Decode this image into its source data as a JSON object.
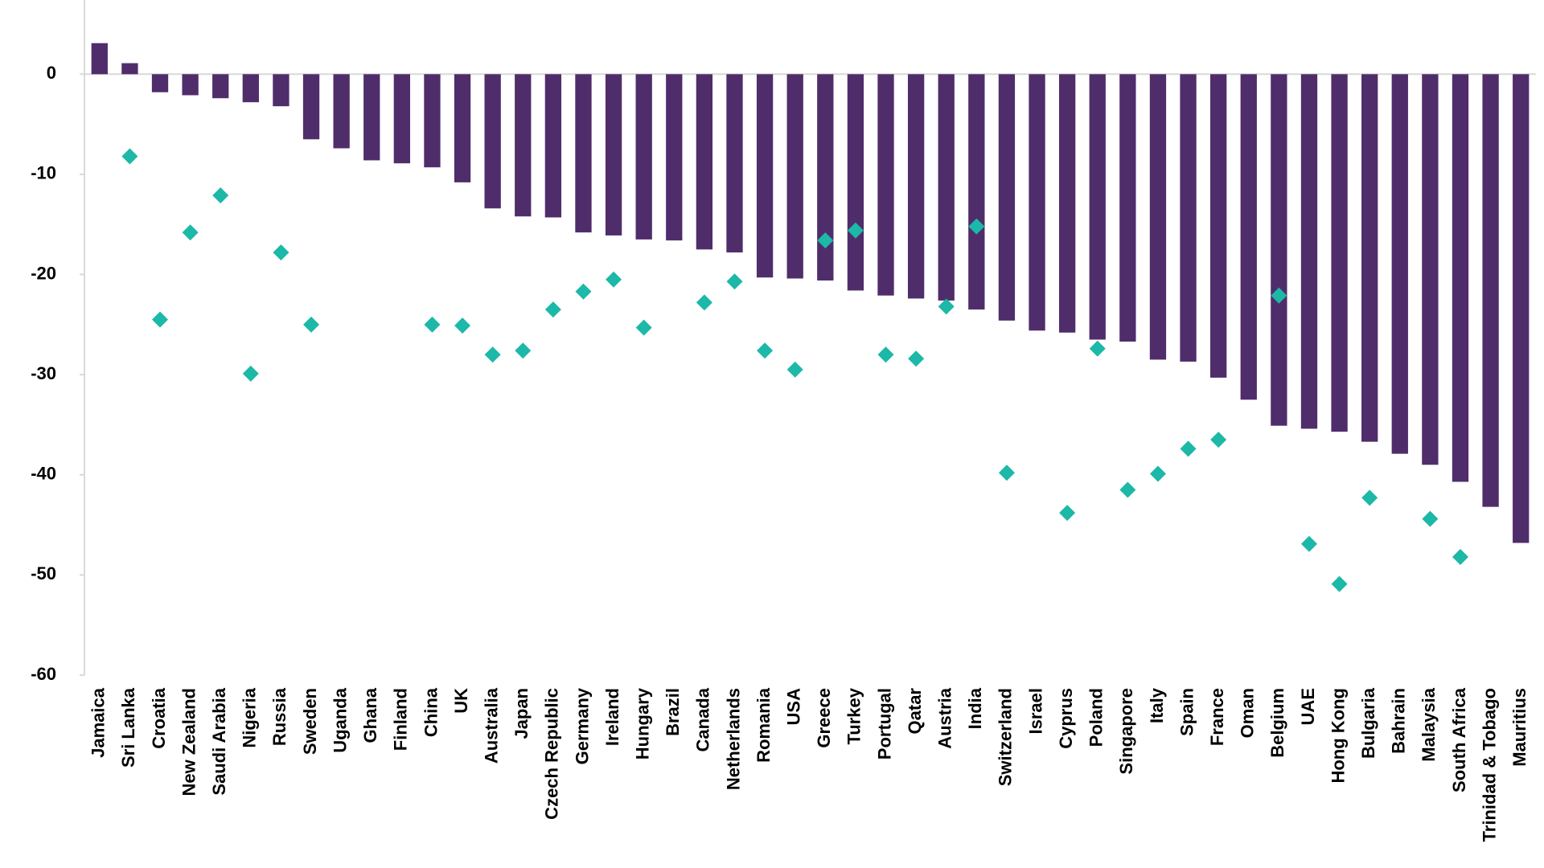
{
  "chart_data": {
    "type": "bar",
    "categories": [
      "Jamaica",
      "Sri Lanka",
      "Croatia",
      "New Zealand",
      "Saudi Arabia",
      "Nigeria",
      "Russia",
      "Sweden",
      "Uganda",
      "Ghana",
      "Finland",
      "China",
      "UK",
      "Australia",
      "Japan",
      "Czech Republic",
      "Germany",
      "Ireland",
      "Hungary",
      "Brazil",
      "Canada",
      "Netherlands",
      "Romania",
      "USA",
      "Greece",
      "Turkey",
      "Portugal",
      "Qatar",
      "Austria",
      "India",
      "Switzerland",
      "Israel",
      "Cyprus",
      "Poland",
      "Singapore",
      "Italy",
      "Spain",
      "France",
      "Oman",
      "Belgium",
      "UAE",
      "Hong Kong",
      "Bulgaria",
      "Bahrain",
      "Malaysia",
      "South Africa",
      "Trinidad & Tobago",
      "Mauritius"
    ],
    "series": [
      {
        "type": "bar",
        "color": "#4f2d6b",
        "values": [
          3.1,
          1.1,
          -1.8,
          -2.1,
          -2.4,
          -2.8,
          -3.2,
          -6.5,
          -7.4,
          -8.6,
          -8.9,
          -9.3,
          -10.8,
          -13.4,
          -14.2,
          -14.3,
          -15.8,
          -16.1,
          -16.5,
          -16.6,
          -17.5,
          -17.8,
          -20.3,
          -20.4,
          -20.6,
          -21.6,
          -22.1,
          -22.4,
          -22.6,
          -23.5,
          -24.6,
          -25.6,
          -25.8,
          -26.5,
          -26.7,
          -28.5,
          -28.7,
          -30.3,
          -32.5,
          -35.1,
          -35.4,
          -35.7,
          -36.7,
          -37.9,
          -39.0,
          -40.7,
          -43.2,
          -46.8
        ]
      },
      {
        "type": "scatter",
        "color": "#1cb8a8",
        "values": [
          null,
          -8.2,
          -24.5,
          -15.8,
          -12.1,
          -29.9,
          -17.8,
          -25.0,
          null,
          null,
          null,
          -25.0,
          -25.1,
          -28.0,
          -27.6,
          -23.5,
          -21.7,
          -20.5,
          -25.3,
          null,
          -22.8,
          -20.7,
          -27.6,
          -29.5,
          -16.6,
          -15.6,
          -28.0,
          -28.4,
          -23.2,
          -15.2,
          -39.8,
          null,
          -43.8,
          -27.4,
          -41.5,
          -39.9,
          -37.4,
          -36.5,
          null,
          -22.1,
          -46.9,
          -50.9,
          -42.3,
          null,
          -44.4,
          -48.2,
          null,
          null
        ]
      }
    ],
    "ylim": [
      -60,
      5
    ],
    "yticks": [
      0,
      -10,
      -20,
      -30,
      -40,
      -50,
      -60
    ]
  }
}
